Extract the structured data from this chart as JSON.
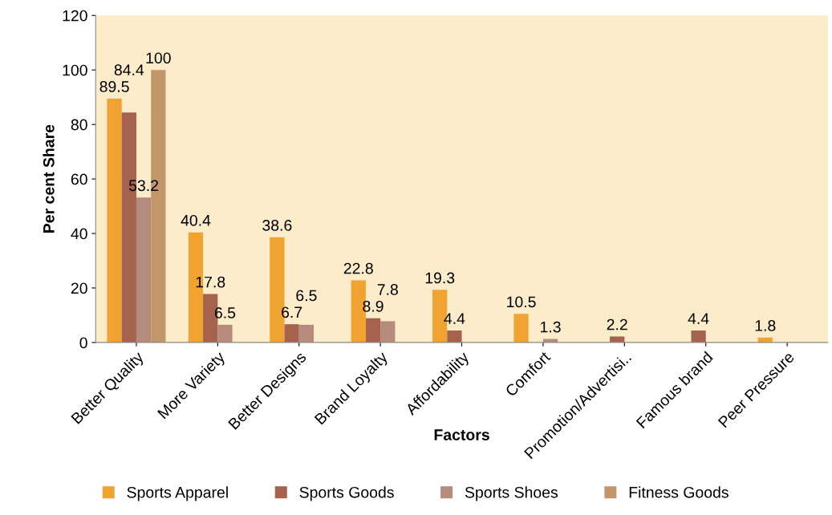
{
  "chart_data": {
    "type": "bar",
    "xlabel": "Factors",
    "ylabel": "Per cent Share",
    "categories": [
      "Better Quality",
      "More Variety",
      "Better Designs",
      "Brand Loyalty",
      "Affordability",
      "Comfort",
      "Promotion/Advertisi..",
      "Famous brand",
      "Peer Pressure"
    ],
    "series": [
      {
        "name": "Sports Apparel",
        "color": "#f0a330",
        "values": [
          89.5,
          40.4,
          38.6,
          22.8,
          19.3,
          10.5,
          null,
          null,
          1.8
        ]
      },
      {
        "name": "Sports Goods",
        "color": "#a5634f",
        "values": [
          84.4,
          17.8,
          6.7,
          8.9,
          4.4,
          null,
          2.2,
          4.4,
          null
        ]
      },
      {
        "name": "Sports Shoes",
        "color": "#b58b7e",
        "values": [
          53.2,
          6.5,
          6.5,
          7.8,
          null,
          1.3,
          null,
          null,
          null
        ]
      },
      {
        "name": "Fitness Goods",
        "color": "#c4976b",
        "values": [
          100,
          null,
          null,
          null,
          null,
          null,
          null,
          null,
          null
        ]
      }
    ],
    "ylim": [
      0,
      120
    ],
    "yticks": [
      0,
      20,
      40,
      60,
      80,
      100,
      120
    ],
    "data_labels": true,
    "grid": false,
    "legend": "bottom"
  }
}
